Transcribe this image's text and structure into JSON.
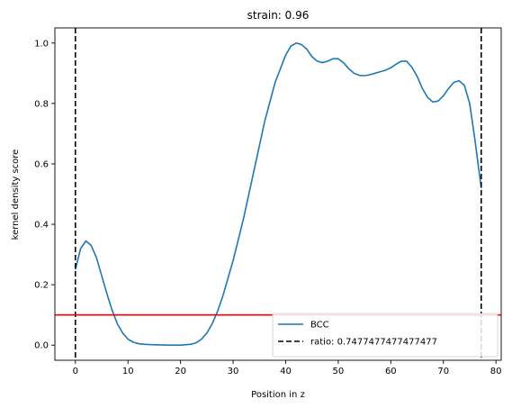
{
  "chart_data": {
    "type": "line",
    "title": "strain: 0.96",
    "xlabel": "Position in z",
    "ylabel": "kernel density score",
    "xlim": [
      -3.9,
      81
    ],
    "ylim": [
      -0.05,
      1.05
    ],
    "xticks": [
      0,
      10,
      20,
      30,
      40,
      50,
      60,
      70,
      80
    ],
    "yticks": [
      0.0,
      0.2,
      0.4,
      0.6,
      0.8,
      1.0
    ],
    "grid": false,
    "legend_position": "lower-right",
    "series": [
      {
        "name": "BCC",
        "kind": "line",
        "color": "#1f77b4",
        "x": [
          0,
          1,
          2,
          3,
          4,
          5,
          6,
          7,
          8,
          9,
          10,
          11,
          12,
          13,
          14,
          16,
          18,
          20,
          22,
          23,
          24,
          25,
          26,
          27,
          28,
          30,
          32,
          34,
          36,
          38,
          40,
          41,
          42,
          43,
          44,
          45,
          46,
          47,
          48,
          49,
          50,
          51,
          52,
          53,
          54,
          55,
          56,
          57,
          58,
          59,
          60,
          61,
          62,
          63,
          64,
          65,
          66,
          67,
          68,
          69,
          70,
          71,
          72,
          73,
          74,
          75,
          76,
          77.2
        ],
        "y": [
          0.25,
          0.32,
          0.345,
          0.33,
          0.29,
          0.23,
          0.17,
          0.115,
          0.07,
          0.04,
          0.02,
          0.01,
          0.005,
          0.003,
          0.002,
          0.001,
          0.0,
          0.0,
          0.003,
          0.008,
          0.02,
          0.04,
          0.07,
          0.11,
          0.16,
          0.28,
          0.42,
          0.58,
          0.74,
          0.87,
          0.96,
          0.99,
          1.0,
          0.995,
          0.98,
          0.955,
          0.94,
          0.935,
          0.94,
          0.948,
          0.948,
          0.935,
          0.915,
          0.9,
          0.893,
          0.892,
          0.895,
          0.9,
          0.905,
          0.91,
          0.918,
          0.93,
          0.94,
          0.94,
          0.92,
          0.89,
          0.85,
          0.82,
          0.805,
          0.808,
          0.825,
          0.85,
          0.87,
          0.875,
          0.86,
          0.8,
          0.68,
          0.52
        ]
      },
      {
        "name": "ratio: 0.7477477477477477",
        "kind": "vline",
        "color": "#000000",
        "dash": true,
        "x_values": [
          0,
          77.2
        ]
      },
      {
        "kind": "hline",
        "color": "#ff0000",
        "y_value": 0.1
      }
    ]
  }
}
